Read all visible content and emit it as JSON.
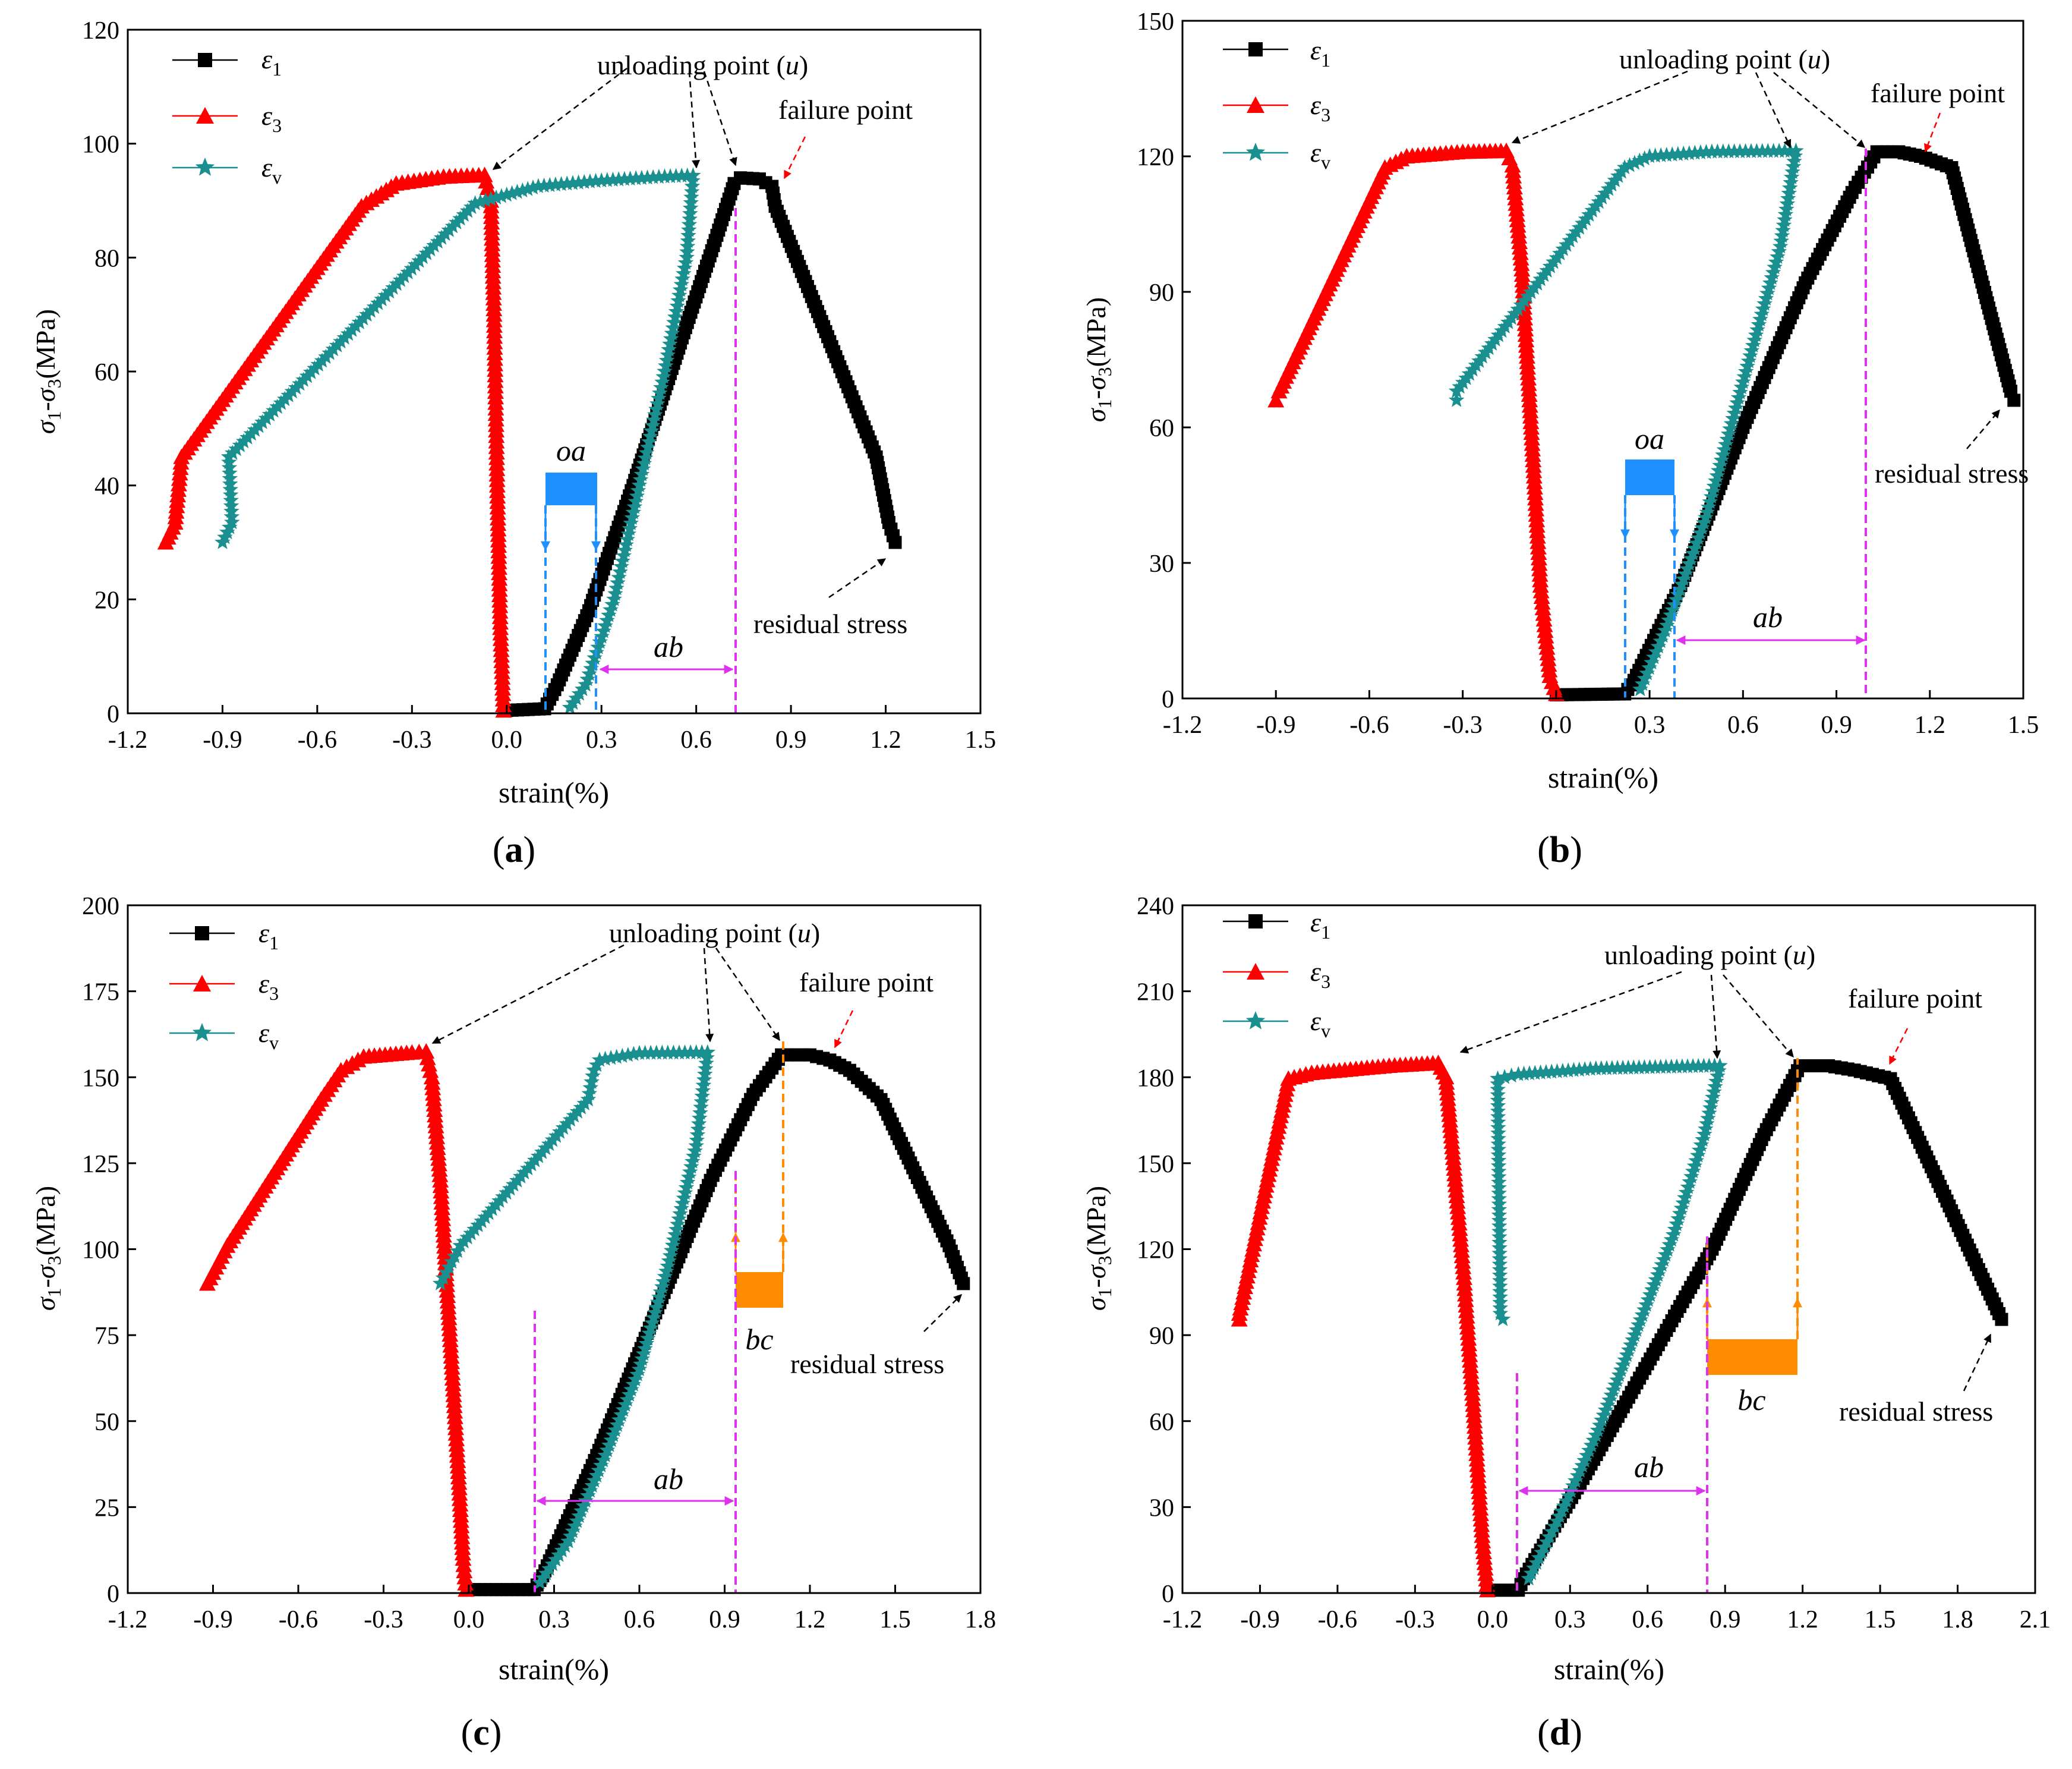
{
  "chart_data": [
    {
      "type": "line",
      "panel_label": "(a)",
      "xlabel": "strain(%)",
      "ylabel": "σ1-σ3(MPa)",
      "xlim": [
        -1.2,
        1.5
      ],
      "ylim": [
        0,
        120
      ],
      "xticks": [
        "-1.2",
        "-0.9",
        "-0.6",
        "-0.3",
        "0.0",
        "0.3",
        "0.6",
        "0.9",
        "1.2",
        "1.5"
      ],
      "yticks": [
        "0",
        "20",
        "40",
        "60",
        "80",
        "100",
        "120"
      ],
      "legend": {
        "position": "top-left",
        "entries": [
          "ε1",
          "ε3",
          "εv"
        ]
      },
      "series": [
        {
          "name": "ε1",
          "color": "#000000",
          "marker": "square",
          "points": [
            [
              0.0,
              0.5
            ],
            [
              0.12,
              0.8
            ],
            [
              0.16,
              5
            ],
            [
              0.26,
              18
            ],
            [
              0.4,
              40
            ],
            [
              0.55,
              65
            ],
            [
              0.66,
              83
            ],
            [
              0.72,
              93
            ],
            [
              0.74,
              94
            ],
            [
              0.8,
              93.8
            ],
            [
              0.84,
              92.5
            ],
            [
              0.85,
              89
            ],
            [
              1.17,
              45
            ],
            [
              1.21,
              33.5
            ],
            [
              1.23,
              30
            ]
          ]
        },
        {
          "name": "ε3",
          "color": "#ff0000",
          "marker": "triangle",
          "points": [
            [
              -1.08,
              30
            ],
            [
              -1.05,
              33.5
            ],
            [
              -1.03,
              45
            ],
            [
              -0.46,
              89
            ],
            [
              -0.35,
              93
            ],
            [
              -0.2,
              94.2
            ],
            [
              -0.07,
              94.5
            ],
            [
              -0.05,
              90
            ],
            [
              -0.04,
              70
            ],
            [
              -0.03,
              40
            ],
            [
              -0.02,
              15
            ],
            [
              -0.01,
              0.5
            ]
          ]
        },
        {
          "name": "εv",
          "color": "#1a8f8f",
          "marker": "star",
          "points": [
            [
              -0.9,
              30
            ],
            [
              -0.87,
              33.5
            ],
            [
              -0.88,
              45
            ],
            [
              -0.1,
              89.5
            ],
            [
              0.1,
              92.5
            ],
            [
              0.3,
              93.5
            ],
            [
              0.5,
              94.2
            ],
            [
              0.59,
              94.4
            ],
            [
              0.57,
              80
            ],
            [
              0.5,
              60
            ],
            [
              0.42,
              40
            ],
            [
              0.34,
              20
            ],
            [
              0.25,
              5
            ],
            [
              0.2,
              1
            ]
          ]
        }
      ],
      "annotations": [
        {
          "text": "unloading point (u)",
          "kind": "callout"
        },
        {
          "text": "failure point",
          "kind": "callout"
        },
        {
          "text": "residual stress",
          "kind": "callout"
        },
        {
          "text": "oa",
          "kind": "interval",
          "from": 0.12,
          "to": 0.28
        },
        {
          "text": "ab",
          "kind": "interval",
          "from": 0.28,
          "to": 0.73
        }
      ]
    },
    {
      "type": "line",
      "panel_label": "(b)",
      "xlabel": "strain(%)",
      "ylabel": "σ1-σ3(MPa)",
      "xlim": [
        -1.2,
        1.5
      ],
      "ylim": [
        0,
        150
      ],
      "xticks": [
        "-1.2",
        "-0.9",
        "-0.6",
        "-0.3",
        "0.0",
        "0.3",
        "0.6",
        "0.9",
        "1.2",
        "1.5"
      ],
      "yticks": [
        "0",
        "30",
        "60",
        "90",
        "120",
        "150"
      ],
      "legend": {
        "position": "top-left",
        "entries": [
          "ε1",
          "ε3",
          "εv"
        ]
      },
      "series": [
        {
          "name": "ε1",
          "color": "#000000",
          "marker": "square",
          "points": [
            [
              0.0,
              0.8
            ],
            [
              0.22,
              1
            ],
            [
              0.25,
              4
            ],
            [
              0.4,
              25
            ],
            [
              0.6,
              60
            ],
            [
              0.8,
              92
            ],
            [
              0.95,
              112
            ],
            [
              1.03,
              121
            ],
            [
              1.1,
              121
            ],
            [
              1.17,
              120
            ],
            [
              1.27,
              117.5
            ],
            [
              1.46,
              68
            ],
            [
              1.47,
              66
            ]
          ]
        },
        {
          "name": "ε3",
          "color": "#ff0000",
          "marker": "triangle",
          "points": [
            [
              -0.9,
              66
            ],
            [
              -0.89,
              68
            ],
            [
              -0.55,
              117.5
            ],
            [
              -0.48,
              120
            ],
            [
              -0.3,
              121
            ],
            [
              -0.16,
              121.2
            ],
            [
              -0.14,
              118
            ],
            [
              -0.11,
              95
            ],
            [
              -0.08,
              60
            ],
            [
              -0.05,
              25
            ],
            [
              -0.02,
              5
            ],
            [
              0.0,
              1
            ]
          ]
        },
        {
          "name": "εv",
          "color": "#1a8f8f",
          "marker": "star",
          "points": [
            [
              -0.32,
              66
            ],
            [
              -0.32,
              68
            ],
            [
              0.22,
              117.5
            ],
            [
              0.3,
              120
            ],
            [
              0.5,
              121
            ],
            [
              0.77,
              121.2
            ],
            [
              0.72,
              100
            ],
            [
              0.6,
              70
            ],
            [
              0.48,
              40
            ],
            [
              0.35,
              15
            ],
            [
              0.27,
              2
            ]
          ]
        }
      ],
      "annotations": [
        {
          "text": "unloading point (u)",
          "kind": "callout"
        },
        {
          "text": "failure point",
          "kind": "callout"
        },
        {
          "text": "residual stress",
          "kind": "callout"
        },
        {
          "text": "oa",
          "kind": "interval",
          "from": 0.25,
          "to": 0.4
        },
        {
          "text": "ab",
          "kind": "interval",
          "from": 0.4,
          "to": 1.02
        }
      ]
    },
    {
      "type": "line",
      "panel_label": "(c)",
      "xlabel": "strain(%)",
      "ylabel": "σ1-σ3(MPa)",
      "xlim": [
        -1.2,
        1.8
      ],
      "ylim": [
        0,
        200
      ],
      "xticks": [
        "-1.2",
        "-0.9",
        "-0.6",
        "-0.3",
        "0.0",
        "0.3",
        "0.6",
        "0.9",
        "1.2",
        "1.5",
        "1.8"
      ],
      "yticks": [
        "0",
        "25",
        "50",
        "75",
        "100",
        "125",
        "150",
        "175",
        "200"
      ],
      "legend": {
        "position": "top-left",
        "entries": [
          "ε1",
          "ε3",
          "εv"
        ]
      },
      "series": [
        {
          "name": "ε1",
          "color": "#000000",
          "marker": "square",
          "points": [
            [
              0.0,
              1
            ],
            [
              0.23,
              1
            ],
            [
              0.26,
              5
            ],
            [
              0.45,
              40
            ],
            [
              0.65,
              80
            ],
            [
              0.85,
              120
            ],
            [
              1.0,
              145
            ],
            [
              1.1,
              156.5
            ],
            [
              1.2,
              156.5
            ],
            [
              1.27,
              155
            ],
            [
              1.34,
              152
            ],
            [
              1.45,
              143.5
            ],
            [
              1.69,
              101
            ],
            [
              1.74,
              90
            ]
          ]
        },
        {
          "name": "ε3",
          "color": "#ff0000",
          "marker": "triangle",
          "points": [
            [
              -0.92,
              90
            ],
            [
              -0.85,
              101
            ],
            [
              -0.52,
              143.5
            ],
            [
              -0.45,
              152
            ],
            [
              -0.37,
              156
            ],
            [
              -0.2,
              157.2
            ],
            [
              -0.15,
              157.5
            ],
            [
              -0.13,
              150
            ],
            [
              -0.1,
              120
            ],
            [
              -0.07,
              80
            ],
            [
              -0.04,
              40
            ],
            [
              -0.02,
              10
            ],
            [
              -0.01,
              1
            ]
          ]
        },
        {
          "name": "εv",
          "color": "#1a8f8f",
          "marker": "star",
          "points": [
            [
              -0.1,
              90
            ],
            [
              -0.03,
              101
            ],
            [
              0.42,
              143.5
            ],
            [
              0.44,
              152
            ],
            [
              0.46,
              155
            ],
            [
              0.6,
              157
            ],
            [
              0.84,
              157.2
            ],
            [
              0.8,
              130
            ],
            [
              0.7,
              95
            ],
            [
              0.6,
              65
            ],
            [
              0.48,
              40
            ],
            [
              0.35,
              15
            ],
            [
              0.25,
              3
            ]
          ]
        }
      ],
      "annotations": [
        {
          "text": "unloading point (u)",
          "kind": "callout"
        },
        {
          "text": "failure point",
          "kind": "callout"
        },
        {
          "text": "residual stress",
          "kind": "callout"
        },
        {
          "text": "bc",
          "kind": "interval",
          "from": 0.94,
          "to": 1.1
        },
        {
          "text": "ab",
          "kind": "interval",
          "from": 0.23,
          "to": 0.94
        }
      ]
    },
    {
      "type": "line",
      "panel_label": "(d)",
      "xlabel": "strain(%)",
      "ylabel": "σ1-σ3(MPa)",
      "xlim": [
        -1.2,
        2.1
      ],
      "ylim": [
        0,
        240
      ],
      "xticks": [
        "-1.2",
        "-0.9",
        "-0.6",
        "-0.3",
        "0.0",
        "0.3",
        "0.6",
        "0.9",
        "1.2",
        "1.5",
        "1.8",
        "2.1"
      ],
      "yticks": [
        "0",
        "30",
        "60",
        "90",
        "120",
        "150",
        "180",
        "210",
        "240"
      ],
      "legend": {
        "position": "top-left",
        "entries": [
          "ε1",
          "ε3",
          "εv"
        ]
      },
      "series": [
        {
          "name": "ε1",
          "color": "#000000",
          "marker": "square",
          "points": [
            [
              -0.02,
              1
            ],
            [
              0.1,
              1
            ],
            [
              0.12,
              5
            ],
            [
              0.35,
              40
            ],
            [
              0.6,
              80
            ],
            [
              0.85,
              120
            ],
            [
              1.05,
              160
            ],
            [
              1.19,
              184
            ],
            [
              1.3,
              184
            ],
            [
              1.4,
              182.5
            ],
            [
              1.54,
              179.5
            ],
            [
              1.96,
              97.5
            ],
            [
              1.97,
              95.5
            ]
          ]
        },
        {
          "name": "ε3",
          "color": "#ff0000",
          "marker": "triangle",
          "points": [
            [
              -0.98,
              95.5
            ],
            [
              -0.98,
              97.5
            ],
            [
              -0.79,
              179.5
            ],
            [
              -0.7,
              181.5
            ],
            [
              -0.4,
              184
            ],
            [
              -0.21,
              185
            ],
            [
              -0.18,
              180
            ],
            [
              -0.15,
              150
            ],
            [
              -0.11,
              110
            ],
            [
              -0.07,
              60
            ],
            [
              -0.04,
              20
            ],
            [
              -0.02,
              1
            ]
          ]
        },
        {
          "name": "εv",
          "color": "#1a8f8f",
          "marker": "star",
          "points": [
            [
              0.04,
              95.5
            ],
            [
              0.03,
              97.5
            ],
            [
              0.02,
              179.5
            ],
            [
              0.1,
              181
            ],
            [
              0.4,
              183
            ],
            [
              0.88,
              184
            ],
            [
              0.82,
              160
            ],
            [
              0.7,
              125
            ],
            [
              0.55,
              90
            ],
            [
              0.4,
              55
            ],
            [
              0.25,
              25
            ],
            [
              0.14,
              5
            ]
          ]
        }
      ],
      "annotations": [
        {
          "text": "unloading point (u)",
          "kind": "callout"
        },
        {
          "text": "failure point",
          "kind": "callout"
        },
        {
          "text": "residual stress",
          "kind": "callout"
        },
        {
          "text": "bc",
          "kind": "interval",
          "from": 0.84,
          "to": 1.19
        },
        {
          "text": "ab",
          "kind": "interval",
          "from": 0.11,
          "to": 0.84
        }
      ]
    }
  ]
}
